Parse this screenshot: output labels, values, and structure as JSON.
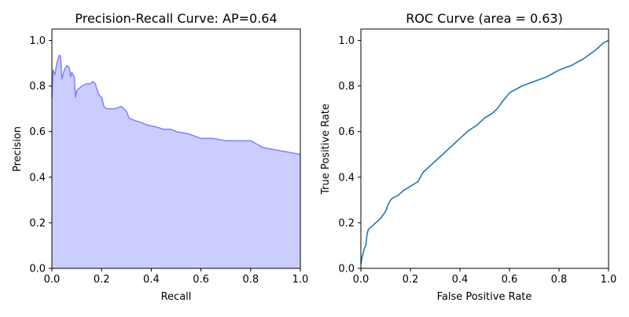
{
  "chart_data": [
    {
      "type": "area",
      "title": "Precision-Recall Curve: AP=0.64",
      "xlabel": "Recall",
      "ylabel": "Precision",
      "xlim": [
        0,
        1.0
      ],
      "ylim": [
        0,
        1.05
      ],
      "xticks": [
        "0.0",
        "0.2",
        "0.4",
        "0.6",
        "0.8",
        "1.0"
      ],
      "yticks": [
        "0.0",
        "0.2",
        "0.4",
        "0.6",
        "0.8",
        "1.0"
      ],
      "grid": false,
      "colors": {
        "line": "#8080ff",
        "fill": "#cccdff"
      },
      "series": [
        {
          "x": [
            0.0,
            0.005,
            0.012,
            0.02,
            0.025,
            0.03,
            0.035,
            0.04,
            0.045,
            0.05,
            0.06,
            0.07,
            0.075,
            0.08,
            0.09,
            0.095,
            0.1,
            0.11,
            0.12,
            0.14,
            0.155,
            0.165,
            0.175,
            0.18,
            0.19,
            0.2,
            0.21,
            0.22,
            0.25,
            0.28,
            0.3,
            0.31,
            0.33,
            0.36,
            0.38,
            0.42,
            0.45,
            0.48,
            0.5,
            0.55,
            0.6,
            0.65,
            0.7,
            0.75,
            0.8,
            0.85,
            0.9,
            0.95,
            1.0
          ],
          "y": [
            0.75,
            0.87,
            0.85,
            0.9,
            0.92,
            0.935,
            0.93,
            0.83,
            0.85,
            0.87,
            0.89,
            0.88,
            0.84,
            0.86,
            0.84,
            0.75,
            0.78,
            0.79,
            0.8,
            0.81,
            0.81,
            0.82,
            0.81,
            0.79,
            0.76,
            0.75,
            0.71,
            0.7,
            0.7,
            0.71,
            0.69,
            0.66,
            0.65,
            0.64,
            0.63,
            0.62,
            0.61,
            0.61,
            0.6,
            0.59,
            0.57,
            0.57,
            0.56,
            0.56,
            0.56,
            0.53,
            0.52,
            0.51,
            0.5
          ]
        }
      ]
    },
    {
      "type": "line",
      "title": "ROC Curve (area = 0.63)",
      "xlabel": "False Positive Rate",
      "ylabel": "True Positive Rate",
      "xlim": [
        0,
        1.0
      ],
      "ylim": [
        0,
        1.05
      ],
      "xticks": [
        "0.0",
        "0.2",
        "0.4",
        "0.6",
        "0.8",
        "1.0"
      ],
      "yticks": [
        "0.0",
        "0.2",
        "0.4",
        "0.6",
        "0.8",
        "1.0"
      ],
      "grid": false,
      "colors": {
        "line": "#1f77b4"
      },
      "series": [
        {
          "x": [
            0.0,
            0.005,
            0.01,
            0.015,
            0.02,
            0.025,
            0.03,
            0.04,
            0.05,
            0.07,
            0.08,
            0.1,
            0.11,
            0.12,
            0.13,
            0.15,
            0.17,
            0.2,
            0.23,
            0.25,
            0.28,
            0.3,
            0.33,
            0.35,
            0.38,
            0.4,
            0.43,
            0.47,
            0.5,
            0.53,
            0.55,
            0.57,
            0.6,
            0.65,
            0.7,
            0.75,
            0.8,
            0.85,
            0.9,
            0.95,
            0.98,
            1.0
          ],
          "y": [
            0.02,
            0.05,
            0.07,
            0.09,
            0.1,
            0.15,
            0.17,
            0.18,
            0.19,
            0.21,
            0.22,
            0.25,
            0.28,
            0.3,
            0.31,
            0.32,
            0.34,
            0.36,
            0.38,
            0.42,
            0.45,
            0.47,
            0.5,
            0.52,
            0.55,
            0.57,
            0.6,
            0.63,
            0.66,
            0.68,
            0.7,
            0.73,
            0.77,
            0.8,
            0.82,
            0.84,
            0.87,
            0.89,
            0.92,
            0.96,
            0.99,
            1.0
          ]
        }
      ]
    }
  ]
}
